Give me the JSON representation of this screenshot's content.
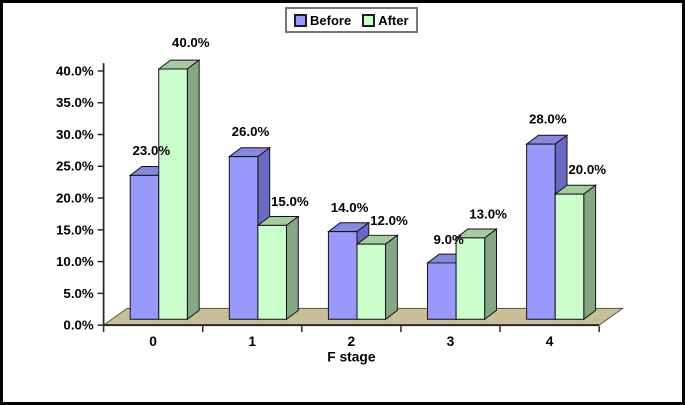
{
  "frame": {
    "background": "#ffffff",
    "border_color": "#000000"
  },
  "chart_data": {
    "type": "bar",
    "projection": "3d",
    "title": "",
    "xlabel": "F stage",
    "ylabel": "",
    "categories": [
      "0",
      "1",
      "2",
      "3",
      "4"
    ],
    "series": [
      {
        "name": "Before",
        "values": [
          23,
          26,
          14,
          9,
          28
        ],
        "labels": [
          "23.0%",
          "26.0%",
          "14.0%",
          "9.0%",
          "28.0%"
        ],
        "color_front": "#9999FB",
        "color_top": "#8787DE",
        "color_side": "#6A6AC2"
      },
      {
        "name": "After",
        "values": [
          40,
          15,
          12,
          13,
          20
        ],
        "labels": [
          "40.0%",
          "15.0%",
          "12.0%",
          "13.0%",
          "20.0%"
        ],
        "color_front": "#CCFECC",
        "color_top": "#A6CBA1",
        "color_side": "#85A785"
      }
    ],
    "ylim": [
      0,
      40
    ],
    "ytick_step": 5,
    "ytick_labels": [
      "0.0%",
      "5.0%",
      "10.0%",
      "15.0%",
      "20.0%",
      "25.0%",
      "30.0%",
      "35.0%",
      "40.0%"
    ],
    "grid": false,
    "legend_position": "top-center",
    "floor_color": "#C6BF97",
    "floor_edge_color": "#59543F",
    "axis_color": "#262626",
    "bar_edge_color": "#111119",
    "label_color": "#000000"
  }
}
